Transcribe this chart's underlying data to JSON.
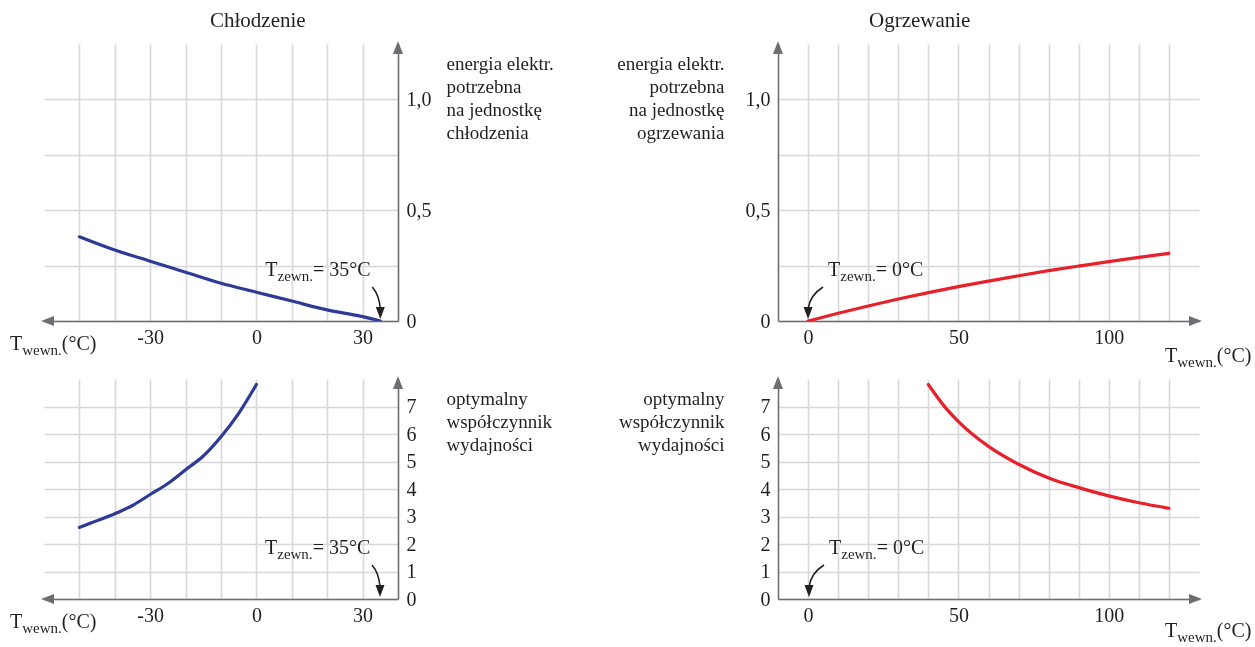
{
  "chart_data": [
    {
      "type": "line",
      "title": "Chłodzenie",
      "xlabel": "T$_{wewn.}$(°C)",
      "ylabel": "energia elektr.\npotrzebna\nna jednostkę\nchłodzenia",
      "x": [
        -50,
        -40,
        -30,
        -20,
        -10,
        0,
        10,
        20,
        30,
        35
      ],
      "series": [
        {
          "color": "#2e3b96",
          "values": [
            0.38,
            0.32,
            0.27,
            0.22,
            0.17,
            0.13,
            0.09,
            0.05,
            0.02,
            0
          ]
        }
      ],
      "xlim": [
        -60,
        40
      ],
      "ylim": [
        0,
        1.25
      ],
      "xticks": [
        {
          "value": -50,
          "label": null
        },
        {
          "value": -40,
          "label": null
        },
        -30,
        {
          "value": -20,
          "label": null
        },
        {
          "value": -10,
          "label": null
        },
        0,
        {
          "value": 10,
          "label": null
        },
        {
          "value": 20,
          "label": null
        },
        30
      ],
      "yticks": [
        0,
        {
          "value": 0.25,
          "label": null
        },
        {
          "value": 0.5,
          "label": "0,5"
        },
        {
          "value": 0.75,
          "label": null
        },
        {
          "value": 1,
          "label": "1,0"
        }
      ],
      "grid": true,
      "annotations": [
        {
          "text": "T$_{zewn.}$= 35°C",
          "x": 35,
          "y": 0
        }
      ]
    },
    {
      "type": "line",
      "title": "Ogrzewanie",
      "xlabel": "T$_{wewn.}$(°C)",
      "ylabel": "energia elektr.\npotrzebna\nna jednostkę\nogrzewania",
      "x": [
        0,
        10,
        20,
        30,
        40,
        50,
        60,
        70,
        80,
        90,
        100,
        110,
        120
      ],
      "series": [
        {
          "color": "#e8202a",
          "values": [
            0,
            0.035,
            0.068,
            0.099,
            0.128,
            0.155,
            0.18,
            0.204,
            0.227,
            0.248,
            0.268,
            0.287,
            0.305
          ]
        }
      ],
      "xlim": [
        -10,
        130
      ],
      "ylim": [
        0,
        1.25
      ],
      "xticks": [
        0,
        {
          "value": 10,
          "label": null
        },
        {
          "value": 20,
          "label": null
        },
        {
          "value": 30,
          "label": null
        },
        {
          "value": 40,
          "label": null
        },
        50,
        {
          "value": 60,
          "label": null
        },
        {
          "value": 70,
          "label": null
        },
        {
          "value": 80,
          "label": null
        },
        {
          "value": 90,
          "label": null
        },
        100,
        {
          "value": 110,
          "label": null
        },
        {
          "value": 120,
          "label": null
        }
      ],
      "yticks": [
        0,
        {
          "value": 0.25,
          "label": null
        },
        {
          "value": 0.5,
          "label": "0,5"
        },
        {
          "value": 0.75,
          "label": null
        },
        {
          "value": 1,
          "label": "1,0"
        }
      ],
      "grid": true,
      "annotations": [
        {
          "text": "T$_{zewn.}$= 0°C",
          "x": 0,
          "y": 0
        }
      ]
    },
    {
      "type": "line",
      "xlabel": "T$_{wewn.}$(°C)",
      "ylabel": "optymalny\nwspółczynnik\nwydajności",
      "x": [
        -50,
        -45,
        -40,
        -35,
        -30,
        -25,
        -20,
        -15,
        -10,
        -5,
        0
      ],
      "series": [
        {
          "color": "#2e3b96",
          "values": [
            2.6,
            2.85,
            3.1,
            3.4,
            3.8,
            4.2,
            4.7,
            5.2,
            5.9,
            6.75,
            7.8
          ]
        }
      ],
      "xlim": [
        -60,
        40
      ],
      "ylim": [
        0,
        8
      ],
      "xticks": [
        {
          "value": -50,
          "label": null
        },
        {
          "value": -40,
          "label": null
        },
        -30,
        {
          "value": -20,
          "label": null
        },
        {
          "value": -10,
          "label": null
        },
        0,
        {
          "value": 10,
          "label": null
        },
        {
          "value": 20,
          "label": null
        },
        30
      ],
      "yticks": [
        0,
        1,
        2,
        3,
        4,
        5,
        6,
        7
      ],
      "grid": true,
      "annotations": [
        "T$_{zewn.}$= 35°C"
      ]
    },
    {
      "type": "line",
      "xlabel": "T$_{wewn.}$(°C)",
      "ylabel": "optymalny\nwspółczynnik\nwydajności",
      "x": [
        40,
        45,
        50,
        60,
        70,
        80,
        90,
        100,
        110,
        120
      ],
      "series": [
        {
          "color": "#e8202a",
          "values": [
            7.8,
            7.05,
            6.45,
            5.55,
            4.9,
            4.4,
            4.05,
            3.75,
            3.5,
            3.3
          ]
        }
      ],
      "xlim": [
        -10,
        130
      ],
      "ylim": [
        0,
        8
      ],
      "xticks": [
        0,
        {
          "value": 10,
          "label": null
        },
        {
          "value": 20,
          "label": null
        },
        {
          "value": 30,
          "label": null
        },
        {
          "value": 40,
          "label": null
        },
        50,
        {
          "value": 60,
          "label": null
        },
        {
          "value": 70,
          "label": null
        },
        {
          "value": 80,
          "label": null
        },
        {
          "value": 90,
          "label": null
        },
        100,
        {
          "value": 110,
          "label": null
        },
        {
          "value": 120,
          "label": null
        }
      ],
      "yticks": [
        0,
        1,
        2,
        3,
        4,
        5,
        6,
        7
      ],
      "grid": true,
      "annotations": [
        "T$_{zewn.}$= 0°C"
      ]
    }
  ]
}
